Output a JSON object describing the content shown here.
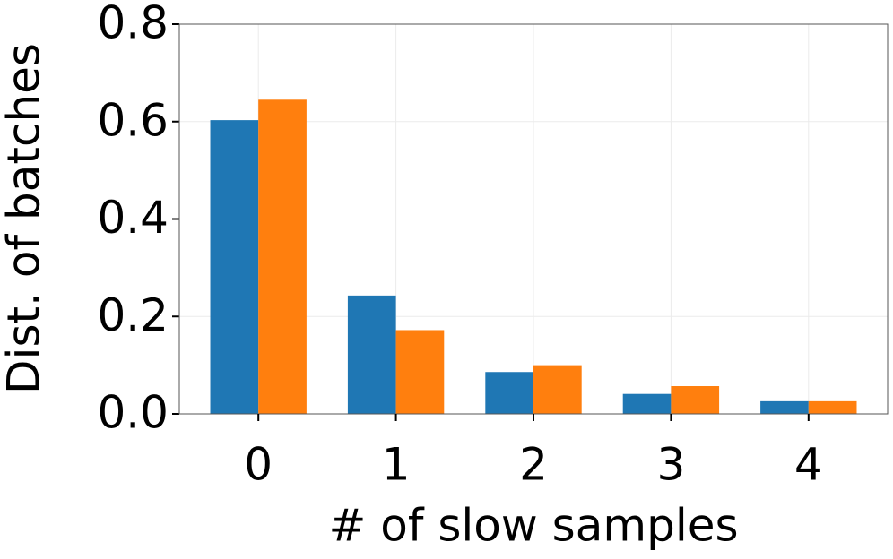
{
  "chart_data": {
    "type": "bar",
    "xlabel": "# of slow samples",
    "ylabel": "Dist. of batches",
    "categories": [
      "0",
      "1",
      "2",
      "3",
      "4"
    ],
    "series": [
      {
        "color": "#1f77b4",
        "values": [
          0.603,
          0.243,
          0.086,
          0.041,
          0.026
        ]
      },
      {
        "color": "#ff7f0e",
        "values": [
          0.645,
          0.172,
          0.1,
          0.057,
          0.026
        ]
      }
    ],
    "ylim": [
      0,
      0.8
    ],
    "yticks": [
      {
        "value": 0,
        "label": "0.0"
      },
      0.2,
      0.4,
      0.6,
      0.8
    ],
    "grid": true
  }
}
